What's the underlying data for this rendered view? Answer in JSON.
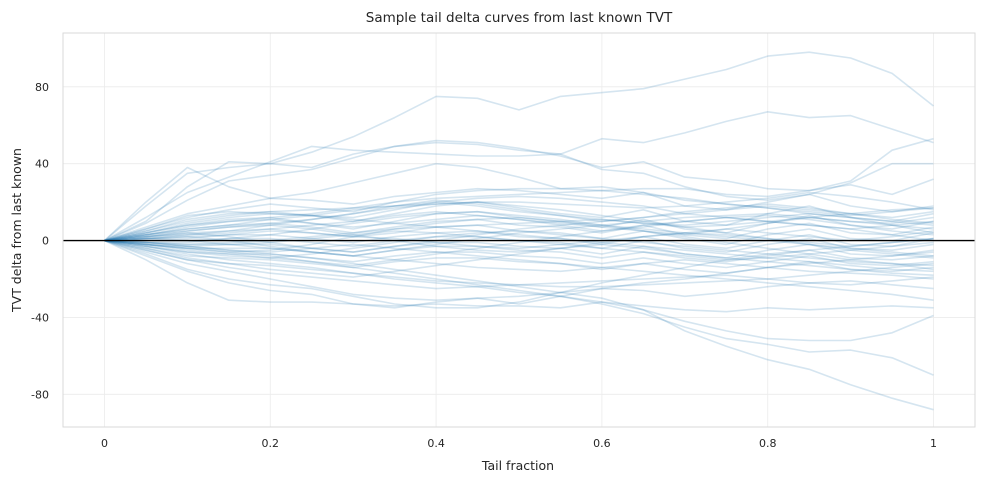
{
  "chart_data": {
    "type": "line",
    "title": "Sample tail delta curves from last known TVT",
    "xlabel": "Tail fraction",
    "ylabel": "TVT delta from last known",
    "xlim": [
      -0.05,
      1.05
    ],
    "ylim": [
      -97,
      108
    ],
    "xticks": [
      0,
      0.2,
      0.4,
      0.6,
      0.8,
      1
    ],
    "xtick_labels": [
      "0",
      "0.2",
      "0.4",
      "0.6",
      "0.8",
      "1"
    ],
    "yticks": [
      -80,
      -40,
      0,
      40,
      80
    ],
    "ytick_labels": [
      "-80",
      "-40",
      "0",
      "40",
      "80"
    ],
    "grid": true,
    "reference_line_y": 0,
    "x": [
      0,
      0.05,
      0.1,
      0.15,
      0.2,
      0.25,
      0.3,
      0.35,
      0.4,
      0.45,
      0.5,
      0.55,
      0.6,
      0.65,
      0.7,
      0.75,
      0.8,
      0.85,
      0.9,
      0.95,
      1
    ],
    "series": [
      {
        "values": [
          0,
          18,
          35,
          38,
          40,
          46,
          54,
          64,
          75,
          74,
          68,
          75,
          77,
          79,
          84,
          89,
          96,
          98,
          95,
          87,
          70
        ]
      },
      {
        "values": [
          0,
          12,
          25,
          33,
          41,
          49,
          47,
          46,
          45,
          44,
          44,
          45,
          53,
          51,
          56,
          62,
          67,
          64,
          65,
          58,
          51
        ]
      },
      {
        "values": [
          0,
          10,
          28,
          41,
          40,
          38,
          45,
          49,
          52,
          51,
          48,
          44,
          38,
          41,
          33,
          31,
          27,
          26,
          31,
          47,
          53
        ]
      },
      {
        "values": [
          0,
          9,
          21,
          31,
          34,
          37,
          43,
          49,
          51,
          50,
          47,
          45,
          37,
          35,
          28,
          23,
          21,
          24,
          30,
          40,
          40
        ]
      },
      {
        "values": [
          0,
          20,
          38,
          28,
          22,
          25,
          30,
          35,
          40,
          38,
          33,
          27,
          26,
          27,
          27,
          24,
          23,
          26,
          29,
          24,
          32
        ]
      },
      {
        "values": [
          0,
          7,
          14,
          18,
          22,
          21,
          19,
          23,
          25,
          27,
          26,
          24,
          22,
          25,
          18,
          16,
          20,
          24,
          18,
          15,
          18
        ]
      },
      {
        "values": [
          0,
          5,
          10,
          13,
          15,
          13,
          10,
          14,
          18,
          20,
          17,
          14,
          12,
          16,
          10,
          8,
          14,
          18,
          12,
          10,
          14
        ]
      },
      {
        "values": [
          0,
          4,
          8,
          11,
          12,
          9,
          6,
          10,
          14,
          15,
          12,
          10,
          7,
          11,
          6,
          4,
          9,
          13,
          8,
          6,
          10
        ]
      },
      {
        "values": [
          0,
          3,
          6,
          8,
          9,
          7,
          4,
          7,
          10,
          11,
          8,
          7,
          4,
          8,
          3,
          1,
          6,
          9,
          4,
          3,
          7
        ]
      },
      {
        "values": [
          0,
          2,
          4,
          5,
          6,
          4,
          2,
          4,
          7,
          8,
          5,
          4,
          1,
          5,
          1,
          -2,
          3,
          6,
          1,
          0,
          4
        ]
      },
      {
        "values": [
          0,
          1,
          2,
          3,
          3,
          1,
          -1,
          2,
          4,
          5,
          2,
          1,
          -2,
          2,
          -2,
          -4,
          0,
          3,
          -2,
          -3,
          1
        ]
      },
      {
        "values": [
          0,
          0,
          0,
          1,
          1,
          -1,
          -3,
          0,
          2,
          2,
          0,
          -1,
          -4,
          0,
          -4,
          -6,
          -2,
          1,
          -4,
          -5,
          -2
        ]
      },
      {
        "values": [
          0,
          -1,
          -2,
          -2,
          -2,
          -4,
          -6,
          -3,
          -1,
          -1,
          -3,
          -4,
          -7,
          -3,
          -7,
          -9,
          -5,
          -2,
          -7,
          -8,
          -5
        ]
      },
      {
        "values": [
          0,
          -2,
          -4,
          -4,
          -4,
          -6,
          -8,
          -5,
          -3,
          -3,
          -5,
          -6,
          -9,
          -6,
          -9,
          -11,
          -8,
          -5,
          -9,
          -10,
          -8
        ]
      },
      {
        "values": [
          0,
          -3,
          -6,
          -7,
          -7,
          -9,
          -11,
          -8,
          -6,
          -6,
          -8,
          -9,
          -12,
          -9,
          -12,
          -14,
          -11,
          -8,
          -12,
          -13,
          -11
        ]
      },
      {
        "values": [
          0,
          -4,
          -8,
          -9,
          -10,
          -12,
          -14,
          -11,
          -9,
          -9,
          -11,
          -12,
          -15,
          -12,
          -15,
          -17,
          -14,
          -11,
          -15,
          -16,
          -14
        ]
      },
      {
        "values": [
          0,
          6,
          12,
          16,
          19,
          17,
          15,
          20,
          24,
          26,
          27,
          27,
          28,
          25,
          21,
          19,
          17,
          14,
          12,
          8,
          4
        ]
      },
      {
        "values": [
          0,
          4,
          9,
          12,
          14,
          13,
          12,
          16,
          20,
          22,
          23,
          22,
          20,
          18,
          14,
          12,
          10,
          8,
          6,
          3,
          0
        ]
      },
      {
        "values": [
          0,
          3,
          5,
          7,
          9,
          11,
          14,
          18,
          21,
          19,
          16,
          13,
          10,
          12,
          15,
          17,
          19,
          17,
          14,
          11,
          9
        ]
      },
      {
        "values": [
          0,
          2,
          3,
          4,
          6,
          8,
          10,
          13,
          15,
          13,
          11,
          8,
          5,
          7,
          10,
          12,
          13,
          11,
          8,
          5,
          3
        ]
      },
      {
        "values": [
          0,
          -2,
          -4,
          -6,
          -5,
          -2,
          2,
          6,
          9,
          11,
          12,
          10,
          8,
          6,
          4,
          2,
          0,
          -2,
          -4,
          -6,
          -8
        ]
      },
      {
        "values": [
          0,
          -3,
          -6,
          -8,
          -9,
          -7,
          -4,
          -1,
          2,
          4,
          5,
          3,
          1,
          -1,
          -3,
          -5,
          -7,
          -9,
          -11,
          -12,
          -13
        ]
      },
      {
        "values": [
          0,
          1,
          3,
          5,
          8,
          11,
          14,
          17,
          19,
          20,
          18,
          16,
          13,
          10,
          7,
          4,
          1,
          -2,
          -5,
          -7,
          -9
        ]
      },
      {
        "values": [
          0,
          -1,
          -1,
          1,
          3,
          6,
          9,
          12,
          14,
          15,
          13,
          11,
          8,
          5,
          2,
          -1,
          -4,
          -7,
          -10,
          -12,
          -15
        ]
      },
      {
        "values": [
          0,
          2,
          4,
          2,
          -1,
          -4,
          -6,
          -3,
          0,
          3,
          6,
          8,
          10,
          12,
          14,
          16,
          18,
          16,
          14,
          12,
          15
        ]
      },
      {
        "values": [
          0,
          1,
          2,
          0,
          -3,
          -6,
          -8,
          -5,
          -2,
          1,
          4,
          6,
          8,
          10,
          12,
          13,
          14,
          12,
          10,
          9,
          12
        ]
      },
      {
        "values": [
          0,
          -2,
          -5,
          -7,
          -9,
          -11,
          -13,
          -10,
          -7,
          -4,
          -1,
          2,
          5,
          8,
          10,
          12,
          10,
          8,
          6,
          8,
          10
        ]
      },
      {
        "values": [
          0,
          -4,
          -9,
          -12,
          -15,
          -17,
          -19,
          -16,
          -13,
          -10,
          -7,
          -4,
          -1,
          2,
          4,
          6,
          4,
          2,
          0,
          2,
          5
        ]
      },
      {
        "values": [
          0,
          -6,
          -12,
          -16,
          -20,
          -24,
          -28,
          -30,
          -31,
          -30,
          -29,
          -27,
          -25,
          -22,
          -20,
          -17,
          -14,
          -12,
          -10,
          -8,
          -6
        ]
      },
      {
        "values": [
          0,
          -8,
          -16,
          -22,
          -26,
          -28,
          -33,
          -35,
          -32,
          -30,
          -33,
          -29,
          -25,
          -26,
          -29,
          -27,
          -24,
          -22,
          -23,
          -21,
          -19
        ]
      },
      {
        "values": [
          0,
          -5,
          -10,
          -14,
          -17,
          -19,
          -21,
          -23,
          -25,
          -24,
          -23,
          -22,
          -21,
          -20,
          -19,
          -18,
          -20,
          -22,
          -21,
          -23,
          -25
        ]
      },
      {
        "values": [
          0,
          -10,
          -22,
          -31,
          -32,
          -32,
          -33,
          -34,
          -33,
          -34,
          -34,
          -35,
          -32,
          -34,
          -36,
          -37,
          -35,
          -36,
          -35,
          -34,
          -35
        ]
      },
      {
        "values": [
          0,
          -7,
          -15,
          -20,
          -23,
          -25,
          -29,
          -33,
          -35,
          -35,
          -32,
          -27,
          -22,
          -18,
          -14,
          -10,
          -7,
          -5,
          -3,
          -1,
          1
        ]
      },
      {
        "values": [
          0,
          -3,
          -7,
          -10,
          -12,
          -14,
          -17,
          -20,
          -22,
          -24,
          -27,
          -29,
          -32,
          -36,
          -42,
          -47,
          -51,
          -52,
          -52,
          -48,
          -39
        ]
      },
      {
        "values": [
          0,
          -2,
          -4,
          -6,
          -8,
          -11,
          -14,
          -17,
          -20,
          -23,
          -26,
          -29,
          -33,
          -38,
          -45,
          -51,
          -54,
          -58,
          -57,
          -61,
          -70
        ]
      },
      {
        "values": [
          0,
          -1,
          -3,
          -5,
          -7,
          -9,
          -12,
          -15,
          -18,
          -21,
          -24,
          -27,
          -30,
          -36,
          -47,
          -55,
          -62,
          -67,
          -75,
          -82,
          -88
        ]
      },
      {
        "values": [
          0,
          3,
          7,
          10,
          12,
          14,
          17,
          20,
          22,
          23,
          24,
          25,
          26,
          24,
          22,
          19,
          17,
          15,
          13,
          15,
          17
        ]
      },
      {
        "values": [
          0,
          5,
          11,
          14,
          15,
          16,
          17,
          18,
          19,
          20,
          20,
          19,
          18,
          17,
          18,
          20,
          22,
          25,
          23,
          20,
          16
        ]
      },
      {
        "values": [
          0,
          -1,
          -2,
          -1,
          0,
          2,
          4,
          6,
          7,
          8,
          9,
          10,
          11,
          9,
          7,
          8,
          10,
          12,
          14,
          16,
          17
        ]
      },
      {
        "values": [
          0,
          1,
          1,
          3,
          5,
          4,
          2,
          1,
          -1,
          -3,
          -4,
          -2,
          0,
          2,
          4,
          3,
          1,
          -1,
          -3,
          -1,
          1
        ]
      },
      {
        "values": [
          0,
          2,
          5,
          7,
          8,
          6,
          3,
          0,
          -3,
          -5,
          -6,
          -4,
          -2,
          -4,
          -7,
          -9,
          -11,
          -13,
          -15,
          -17,
          -18
        ]
      },
      {
        "values": [
          0,
          -1,
          -3,
          -5,
          -6,
          -4,
          -2,
          -4,
          -6,
          -8,
          -10,
          -12,
          -14,
          -16,
          -18,
          -20,
          -22,
          -24,
          -26,
          -28,
          -31
        ]
      },
      {
        "values": [
          0,
          4,
          8,
          10,
          11,
          9,
          7,
          9,
          11,
          13,
          11,
          9,
          7,
          5,
          3,
          6,
          9,
          12,
          10,
          8,
          6
        ]
      },
      {
        "values": [
          0,
          -5,
          -10,
          -12,
          -13,
          -15,
          -17,
          -19,
          -21,
          -22,
          -23,
          -24,
          -24,
          -23,
          -22,
          -21,
          -20,
          -18,
          -16,
          -14,
          -12
        ]
      },
      {
        "values": [
          0,
          6,
          13,
          15,
          14,
          13,
          11,
          9,
          7,
          5,
          3,
          1,
          -1,
          -3,
          -5,
          -7,
          -9,
          -11,
          -13,
          -15,
          -16
        ]
      },
      {
        "values": [
          0,
          3,
          6,
          8,
          11,
          13,
          16,
          18,
          20,
          18,
          15,
          13,
          11,
          9,
          8,
          10,
          12,
          14,
          12,
          10,
          8
        ]
      },
      {
        "values": [
          0,
          -2,
          -3,
          -2,
          -1,
          1,
          3,
          5,
          4,
          2,
          0,
          -2,
          -4,
          -6,
          -8,
          -10,
          -9,
          -7,
          -5,
          -3,
          -1
        ]
      },
      {
        "values": [
          0,
          1,
          0,
          -2,
          -4,
          -6,
          -8,
          -10,
          -12,
          -14,
          -15,
          -16,
          -14,
          -12,
          -10,
          -12,
          -14,
          -16,
          -17,
          -18,
          -20
        ]
      }
    ]
  }
}
